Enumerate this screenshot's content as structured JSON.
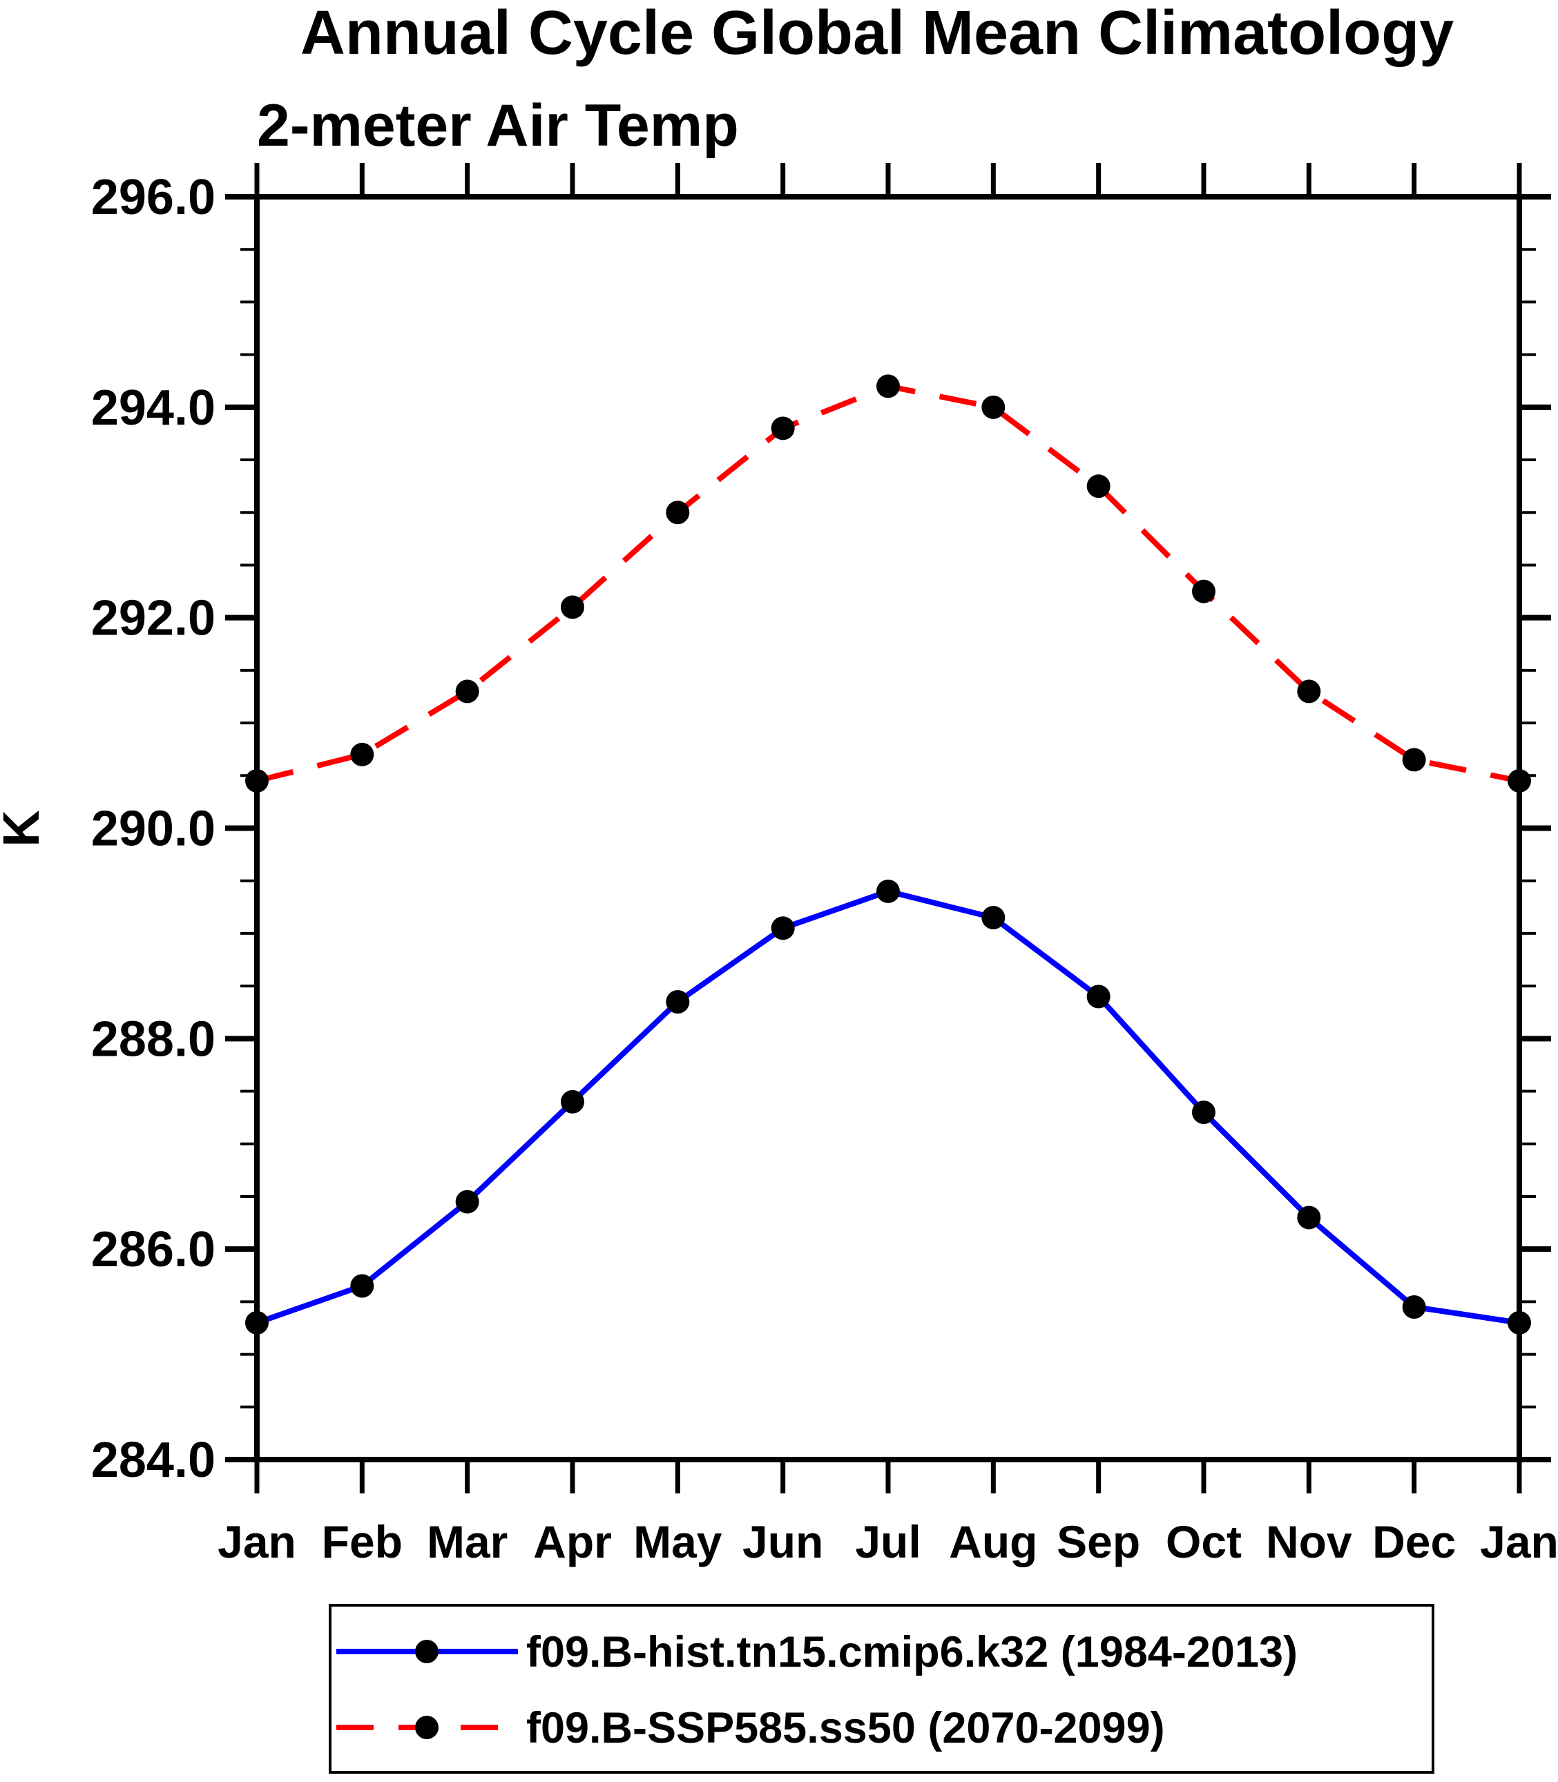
{
  "page": {
    "background": "#ffffff"
  },
  "chart_data": {
    "type": "line",
    "title": "Annual Cycle Global Mean Climatology",
    "subtitle": "2-meter Air Temp",
    "ylabel": "K",
    "categories": [
      "Jan",
      "Feb",
      "Mar",
      "Apr",
      "May",
      "Jun",
      "Jul",
      "Aug",
      "Sep",
      "Oct",
      "Nov",
      "Dec",
      "Jan"
    ],
    "series": [
      {
        "name": "f09.B-hist.tn15.cmip6.k32 (1984-2013)",
        "color": "#0000ff",
        "line_style": "solid",
        "marker": "filled-circle",
        "marker_color": "#000000",
        "values": [
          285.3,
          285.65,
          286.45,
          287.4,
          288.35,
          289.05,
          289.4,
          289.15,
          288.4,
          287.3,
          286.3,
          285.45,
          285.3
        ]
      },
      {
        "name": "f09.B-SSP585.ss50 (2070-2099)",
        "color": "#ff0000",
        "line_style": "dashed",
        "marker": "filled-circle",
        "marker_color": "#000000",
        "values": [
          290.45,
          290.7,
          291.3,
          292.1,
          293.0,
          293.8,
          294.2,
          294.0,
          293.25,
          292.25,
          291.3,
          290.65,
          290.45
        ]
      }
    ],
    "ylim": [
      284.0,
      296.0
    ],
    "y_major_step": 2.0,
    "y_minor_step": 0.5,
    "y_tick_decimals": 1,
    "y_tick_labels": [
      "284.0",
      "286.0",
      "288.0",
      "290.0",
      "292.0",
      "294.0",
      "296.0"
    ],
    "grid": false,
    "legend_position": "bottom",
    "axis_color": "#000000",
    "tick_direction": "out"
  }
}
